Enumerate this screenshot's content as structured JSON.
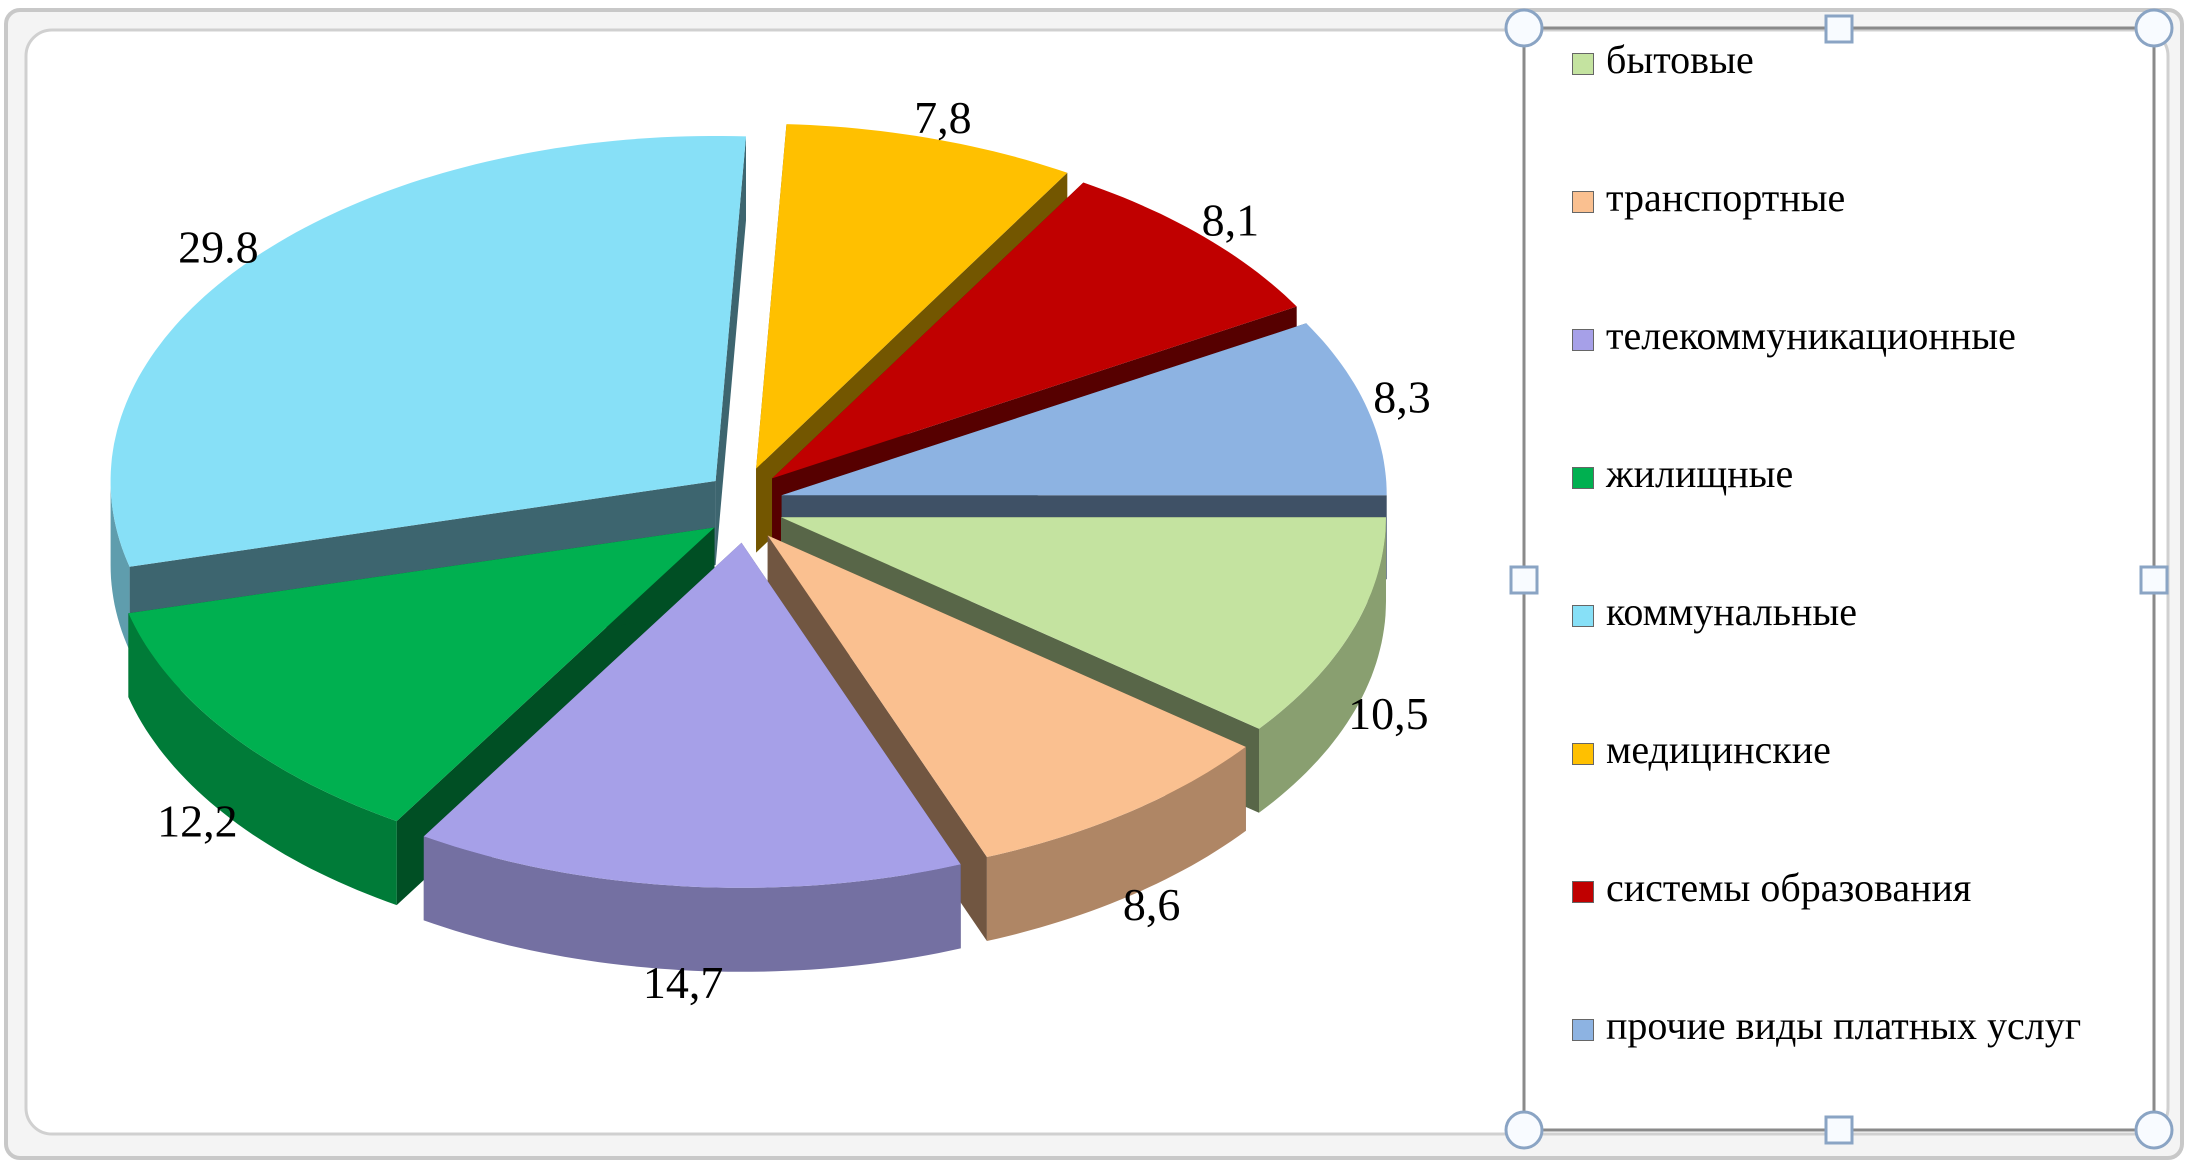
{
  "chart_data": {
    "type": "pie",
    "categories": [
      "бытовые",
      "транспортные",
      "телекоммуникационные",
      "жилищные",
      "коммунальные",
      "медицинские",
      "системы образования",
      "прочие виды платных услуг"
    ],
    "values": [
      10.5,
      8.6,
      14.7,
      12.2,
      29.8,
      7.8,
      8.1,
      8.3
    ],
    "value_labels": [
      "10,5",
      "8,6",
      "14,7",
      "12,2",
      "29.8",
      "7,8",
      "8,1",
      "8,3"
    ],
    "colors": [
      "#c4e3a0",
      "#fac090",
      "#a6a0e8",
      "#00b050",
      "#87e0f7",
      "#ffc000",
      "#c00000",
      "#8db3e2"
    ],
    "legend": "right"
  }
}
